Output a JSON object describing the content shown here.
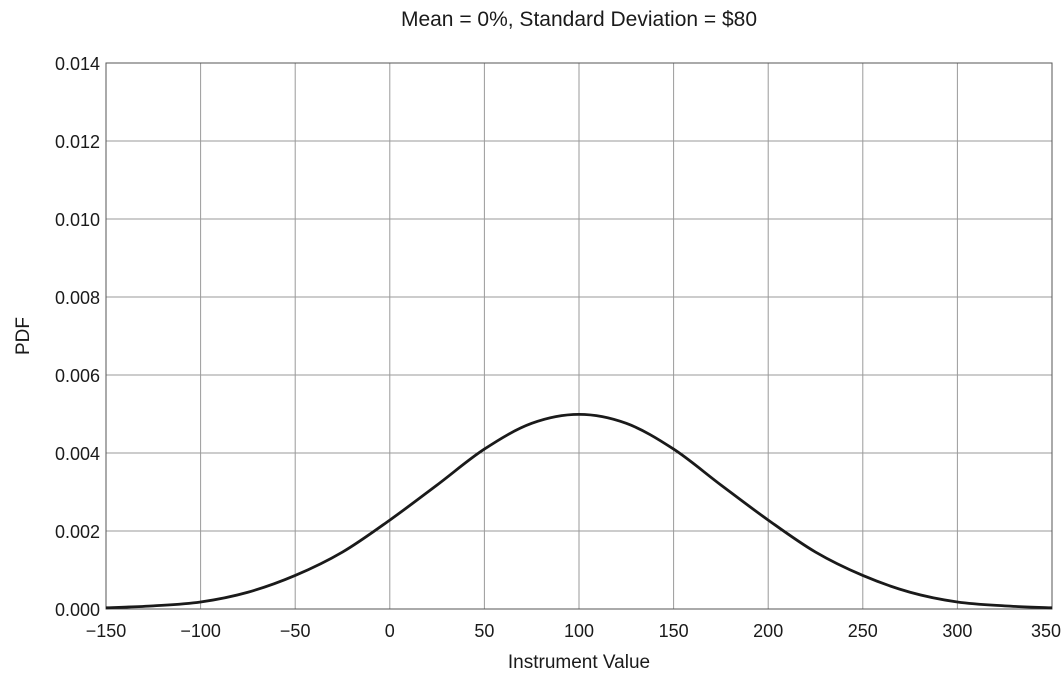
{
  "chart_data": {
    "type": "line",
    "title": "Mean = 0%, Standard Deviation = $80",
    "xlabel": "Instrument Value",
    "ylabel": "PDF",
    "xlim": [
      -150,
      350
    ],
    "ylim": [
      0,
      0.014
    ],
    "grid": true,
    "xticks": [
      -150,
      -100,
      -50,
      0,
      50,
      100,
      150,
      200,
      250,
      300,
      350
    ],
    "xtick_labels": [
      "−150",
      "−100",
      "−50",
      "0",
      "50",
      "100",
      "150",
      "200",
      "250",
      "300",
      "350"
    ],
    "yticks": [
      0,
      0.002,
      0.004,
      0.006,
      0.008,
      0.01,
      0.012,
      0.014
    ],
    "ytick_labels": [
      "0.000",
      "0.002",
      "0.004",
      "0.006",
      "0.008",
      "0.010",
      "0.012",
      "0.014"
    ],
    "series": [
      {
        "color": "#1a1a1a",
        "x": [
          -150,
          -125,
          -100,
          -75,
          -50,
          -25,
          0,
          25,
          50,
          75,
          100,
          125,
          150,
          175,
          200,
          225,
          250,
          275,
          300,
          325,
          350
        ],
        "y": [
          3e-05,
          8e-05,
          0.00018,
          0.00043,
          0.00086,
          0.00146,
          0.00228,
          0.00318,
          0.0041,
          0.00476,
          0.00499,
          0.00476,
          0.0041,
          0.00318,
          0.00228,
          0.00146,
          0.00086,
          0.00043,
          0.00018,
          8e-05,
          3e-05
        ]
      }
    ]
  }
}
